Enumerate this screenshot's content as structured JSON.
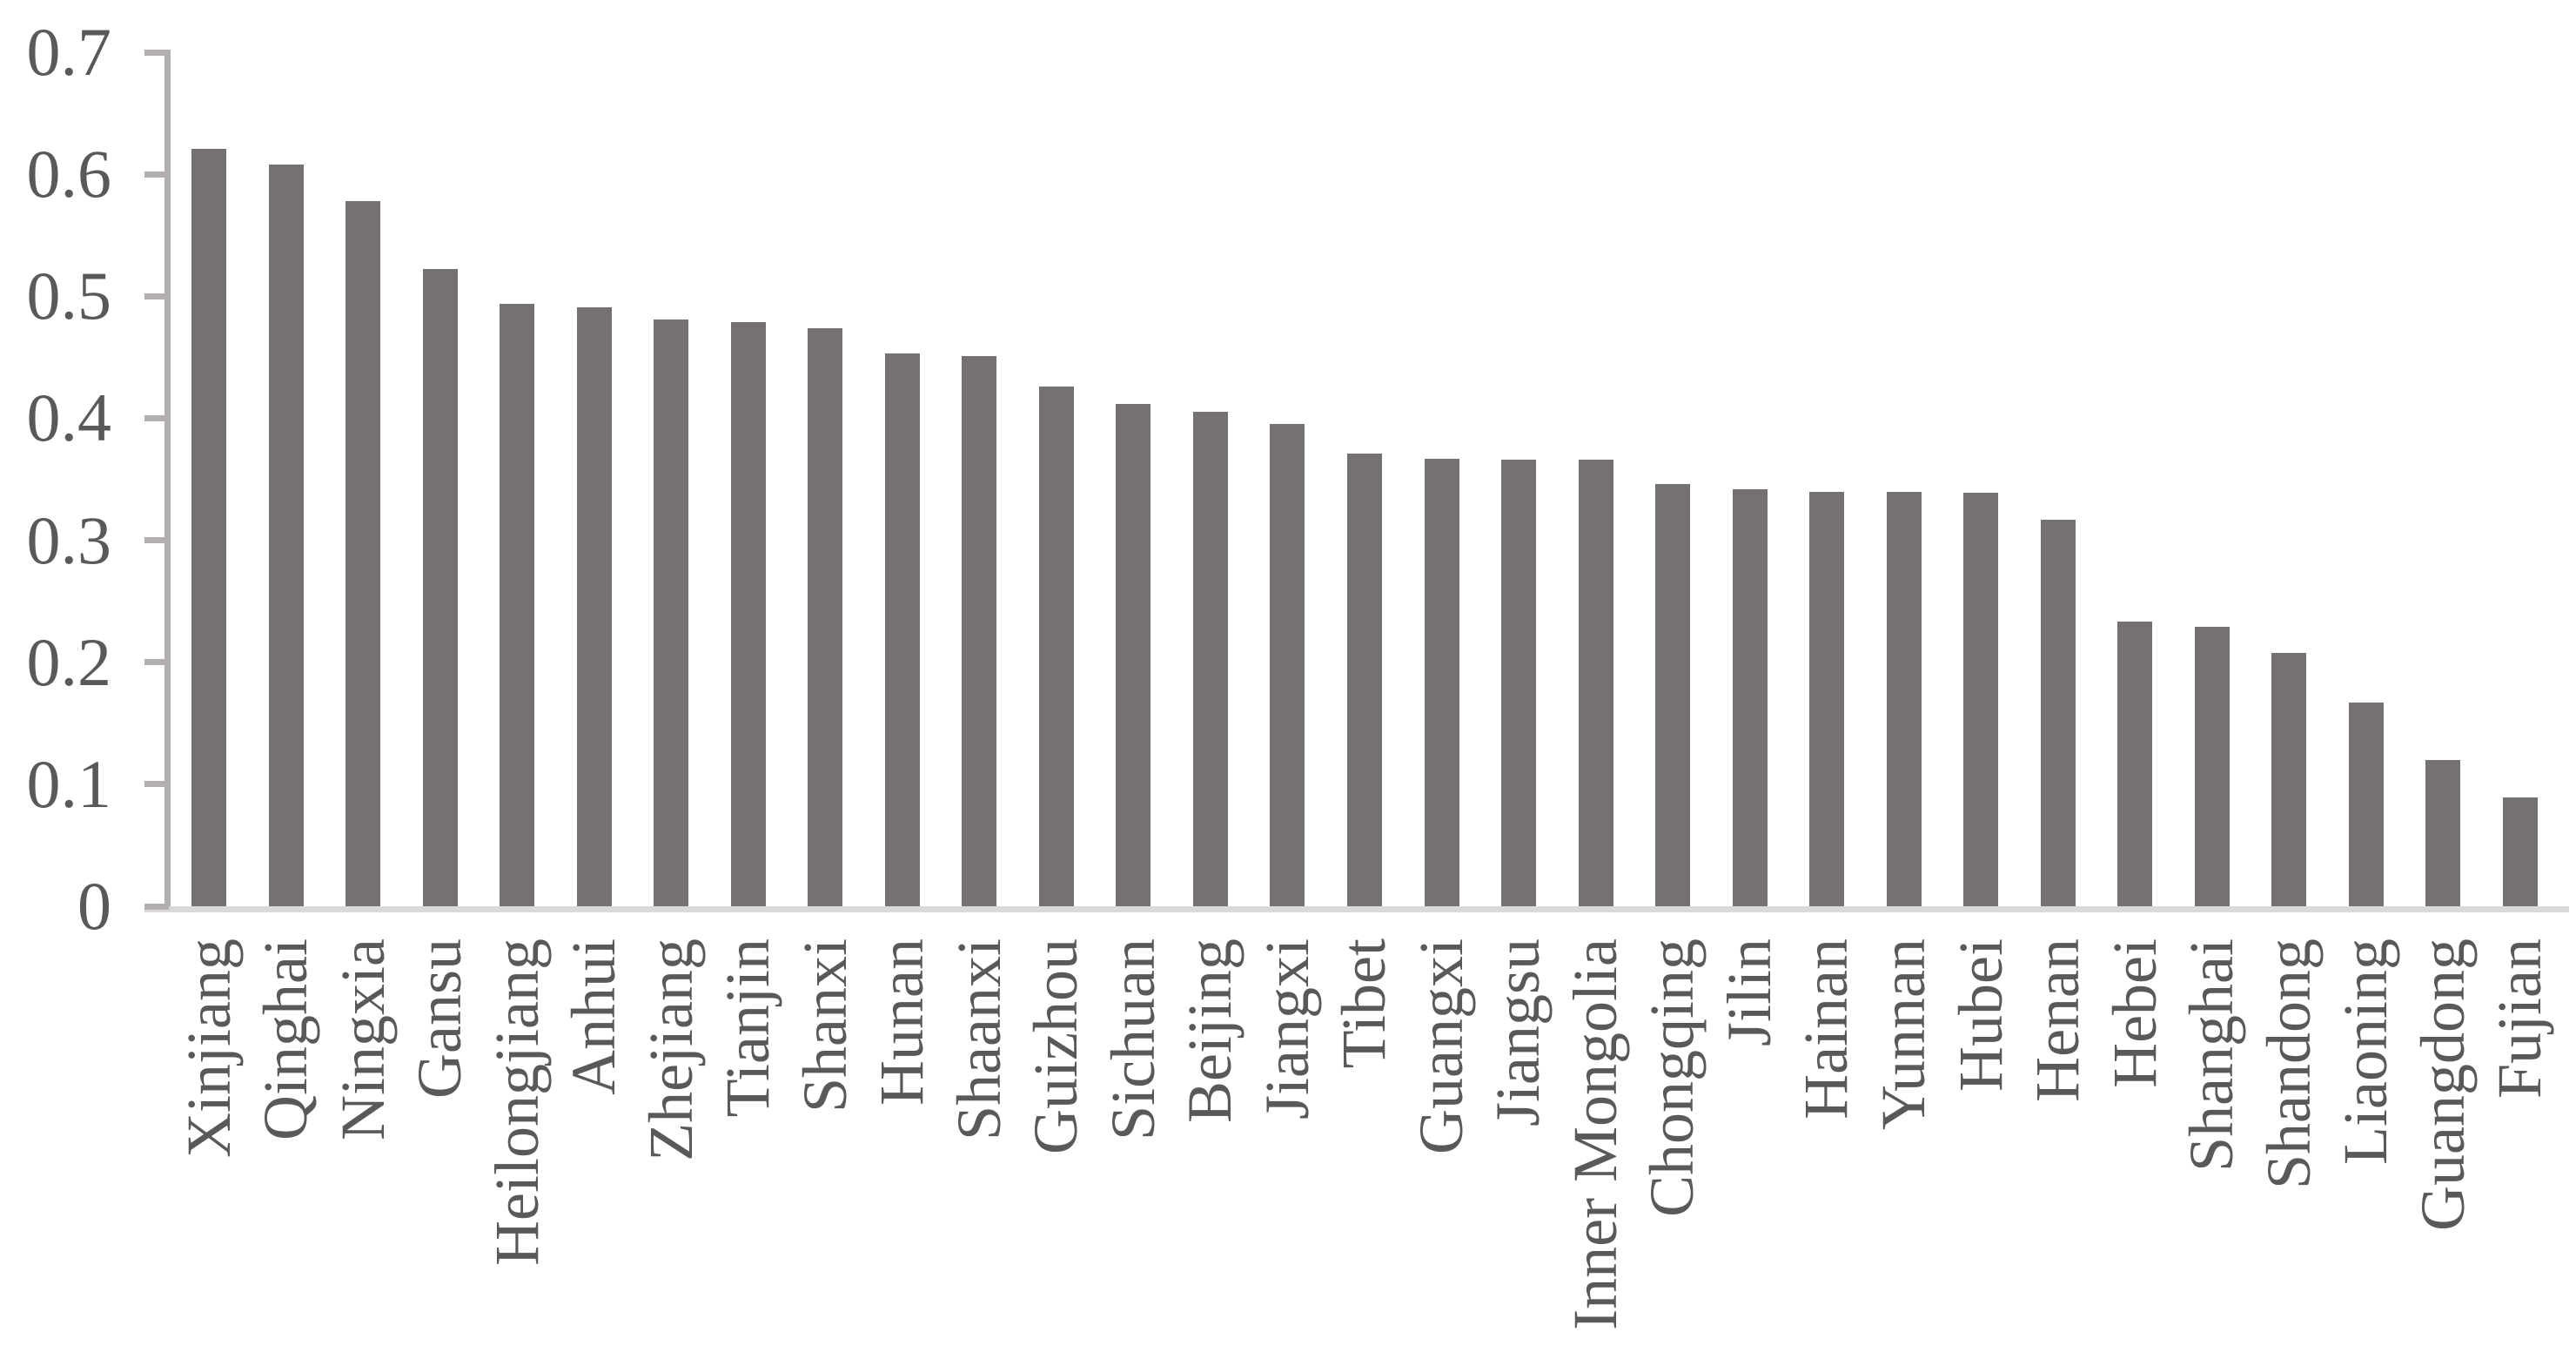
{
  "chart_data": {
    "type": "bar",
    "title": "",
    "xlabel": "",
    "ylabel": "",
    "ylim": [
      0,
      0.7
    ],
    "grid": false,
    "legend_position": "none",
    "y_ticks": [
      0.7,
      0.6,
      0.5,
      0.4,
      0.3,
      0.2,
      0.1,
      0
    ],
    "y_tick_labels": [
      "0.7",
      "0.6",
      "0.5",
      "0.4",
      "0.3",
      "0.2",
      "0.1",
      "0"
    ],
    "categories": [
      "Xinjiang",
      "Qinghai",
      "Ningxia",
      "Gansu",
      "Heilongjiang",
      "Anhui",
      "Zhejiang",
      "Tianjin",
      "Shanxi",
      "Hunan",
      "Shaanxi",
      "Guizhou",
      "Sichuan",
      "Beijing",
      "Jiangxi",
      "Tibet",
      "Guangxi",
      "Jiangsu",
      "Inner Mongolia",
      "Chongqing",
      "Jilin",
      "Hainan",
      "Yunnan",
      "Hubei",
      "Henan",
      "Hebei",
      "Shanghai",
      "Shandong",
      "Liaoning",
      "Guangdong",
      "Fujian"
    ],
    "values": [
      0.621,
      0.608,
      0.578,
      0.522,
      0.494,
      0.491,
      0.481,
      0.479,
      0.474,
      0.453,
      0.451,
      0.426,
      0.412,
      0.405,
      0.395,
      0.371,
      0.367,
      0.366,
      0.366,
      0.346,
      0.342,
      0.34,
      0.34,
      0.339,
      0.317,
      0.233,
      0.229,
      0.208,
      0.167,
      0.12,
      0.089
    ],
    "colors": {
      "bar": "#767171",
      "axis": "#B3AFAF",
      "baseline": "#D9D9D9",
      "text": "#595959"
    }
  }
}
